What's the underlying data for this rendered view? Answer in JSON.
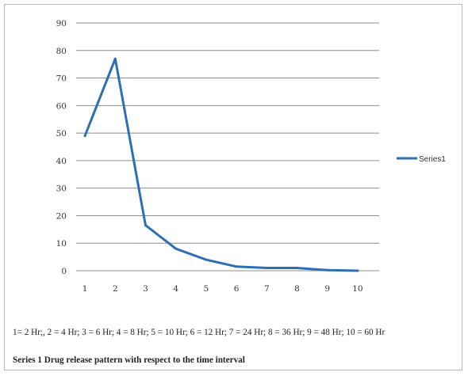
{
  "chart_data": {
    "type": "line",
    "categories": [
      "1",
      "2",
      "3",
      "4",
      "5",
      "6",
      "7",
      "8",
      "9",
      "10"
    ],
    "series": [
      {
        "name": "Series1",
        "values": [
          49,
          77,
          16.5,
          8,
          4,
          1.5,
          1,
          1,
          0.2,
          0
        ]
      }
    ],
    "y_ticks": [
      "0",
      "10",
      "20",
      "30",
      "40",
      "50",
      "60",
      "70",
      "80",
      "90"
    ],
    "ylim": [
      0,
      90
    ],
    "grid": true,
    "legend": "right",
    "line_color": "#2e6fb4",
    "grid_color": "#8c8c8c"
  },
  "footnote": "1= 2 Hr;, 2 = 4 Hr; 3 = 6 Hr; 4 = 8 Hr; 5 = 10 Hr; 6 = 12 Hr; 7 = 24 Hr; 8 = 36 Hr; 9 = 48 Hr; 10 = 60 Hr",
  "caption": "Series 1 Drug release pattern with respect to the time interval"
}
